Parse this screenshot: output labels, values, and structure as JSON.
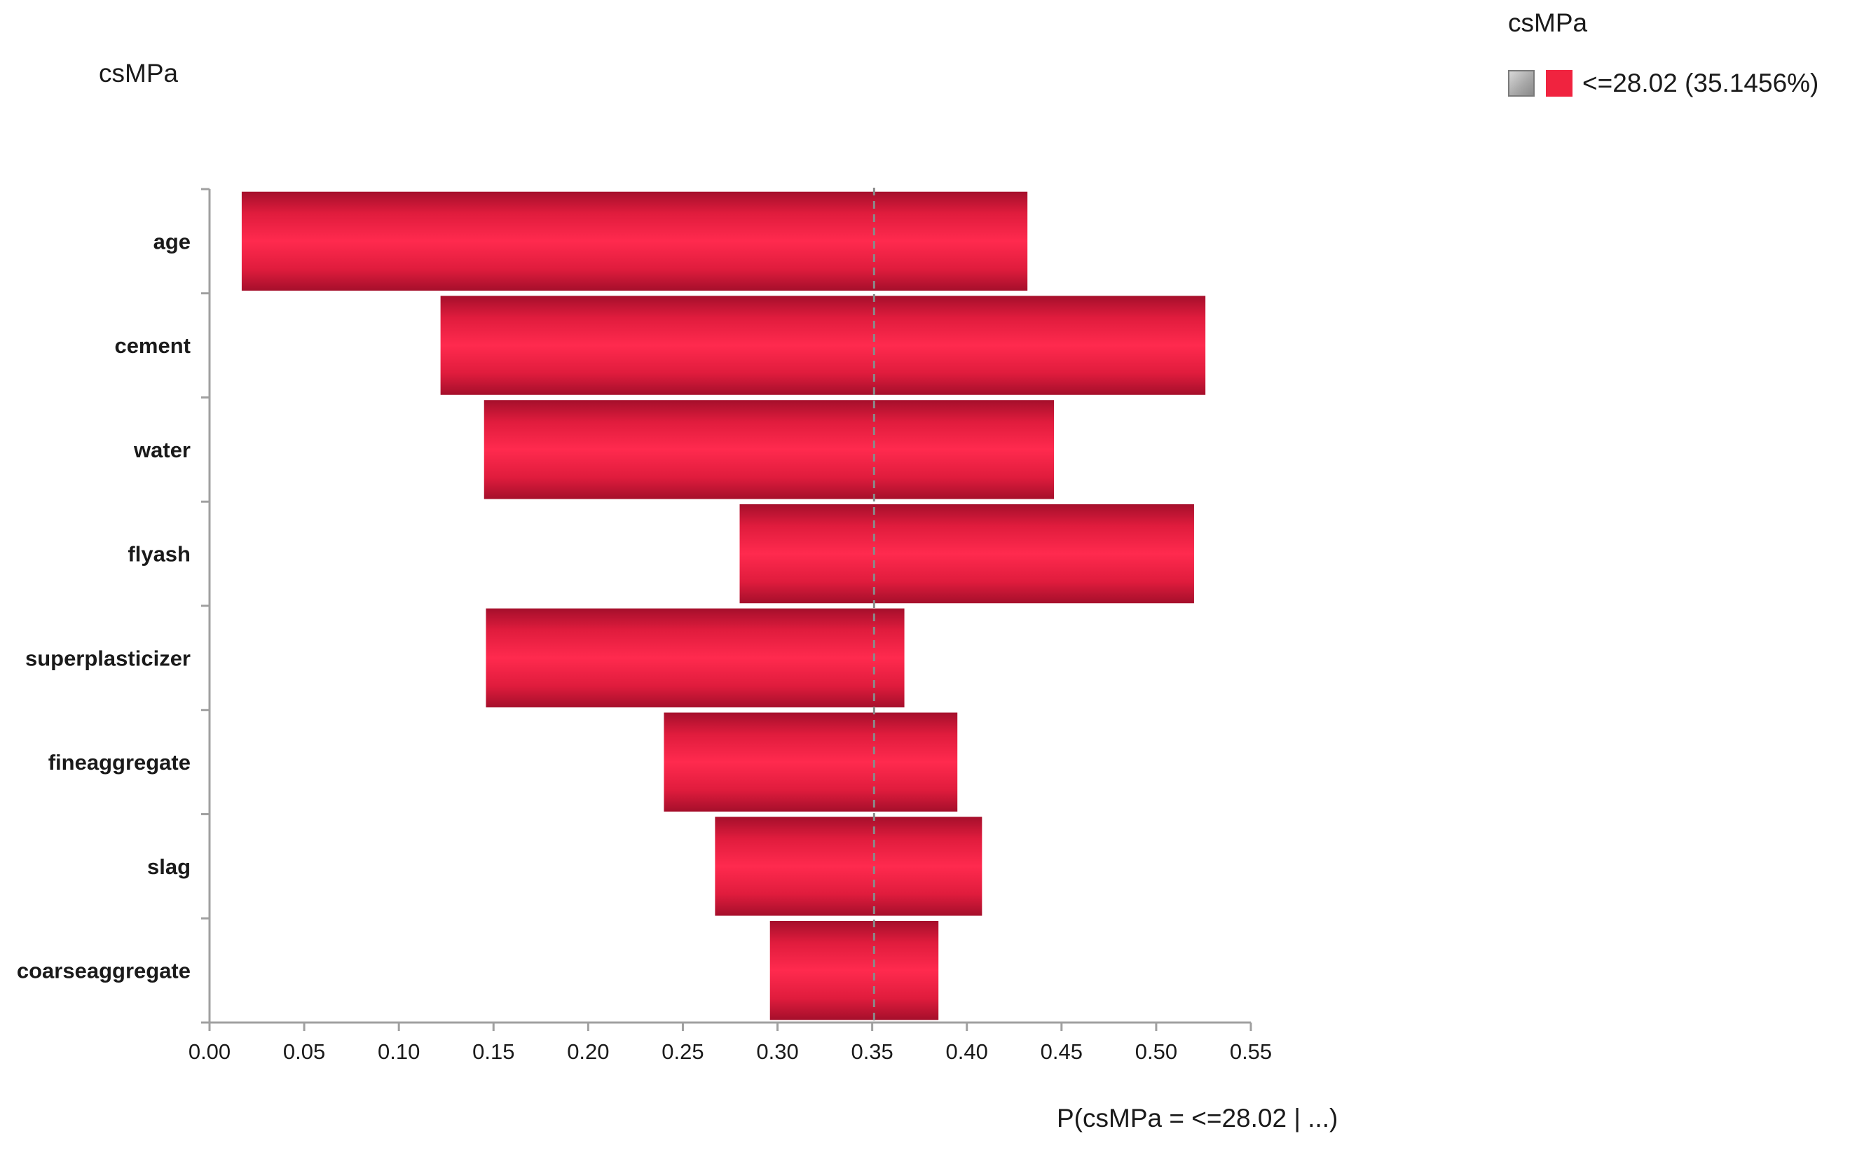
{
  "chart_data": {
    "type": "bar",
    "orientation": "horizontal",
    "style": "tornado",
    "title": "csMPa",
    "legend": {
      "title": "csMPa",
      "entry": "<=28.02 (35.1456%)",
      "placement": "top-right",
      "swatch_colors": [
        "#a9a9a9",
        "#f0233f"
      ]
    },
    "xlabel": "P(csMPa = <=28.02 | ...)",
    "ylabel": "",
    "xlim": [
      0.0,
      0.55
    ],
    "xticks": [
      "0.00",
      "0.05",
      "0.10",
      "0.15",
      "0.20",
      "0.25",
      "0.30",
      "0.35",
      "0.40",
      "0.45",
      "0.50",
      "0.55"
    ],
    "reference_line": 0.351,
    "categories": [
      "age",
      "cement",
      "water",
      "flyash",
      "superplasticizer",
      "fineaggregate",
      "slag",
      "coarseaggregate"
    ],
    "series": [
      {
        "low": 0.017,
        "high": 0.432
      },
      {
        "low": 0.122,
        "high": 0.526
      },
      {
        "low": 0.145,
        "high": 0.446
      },
      {
        "low": 0.28,
        "high": 0.52
      },
      {
        "low": 0.146,
        "high": 0.367
      },
      {
        "low": 0.24,
        "high": 0.395
      },
      {
        "low": 0.267,
        "high": 0.408
      },
      {
        "low": 0.296,
        "high": 0.385
      }
    ],
    "bar_color": "#f0233f",
    "grid": false
  }
}
